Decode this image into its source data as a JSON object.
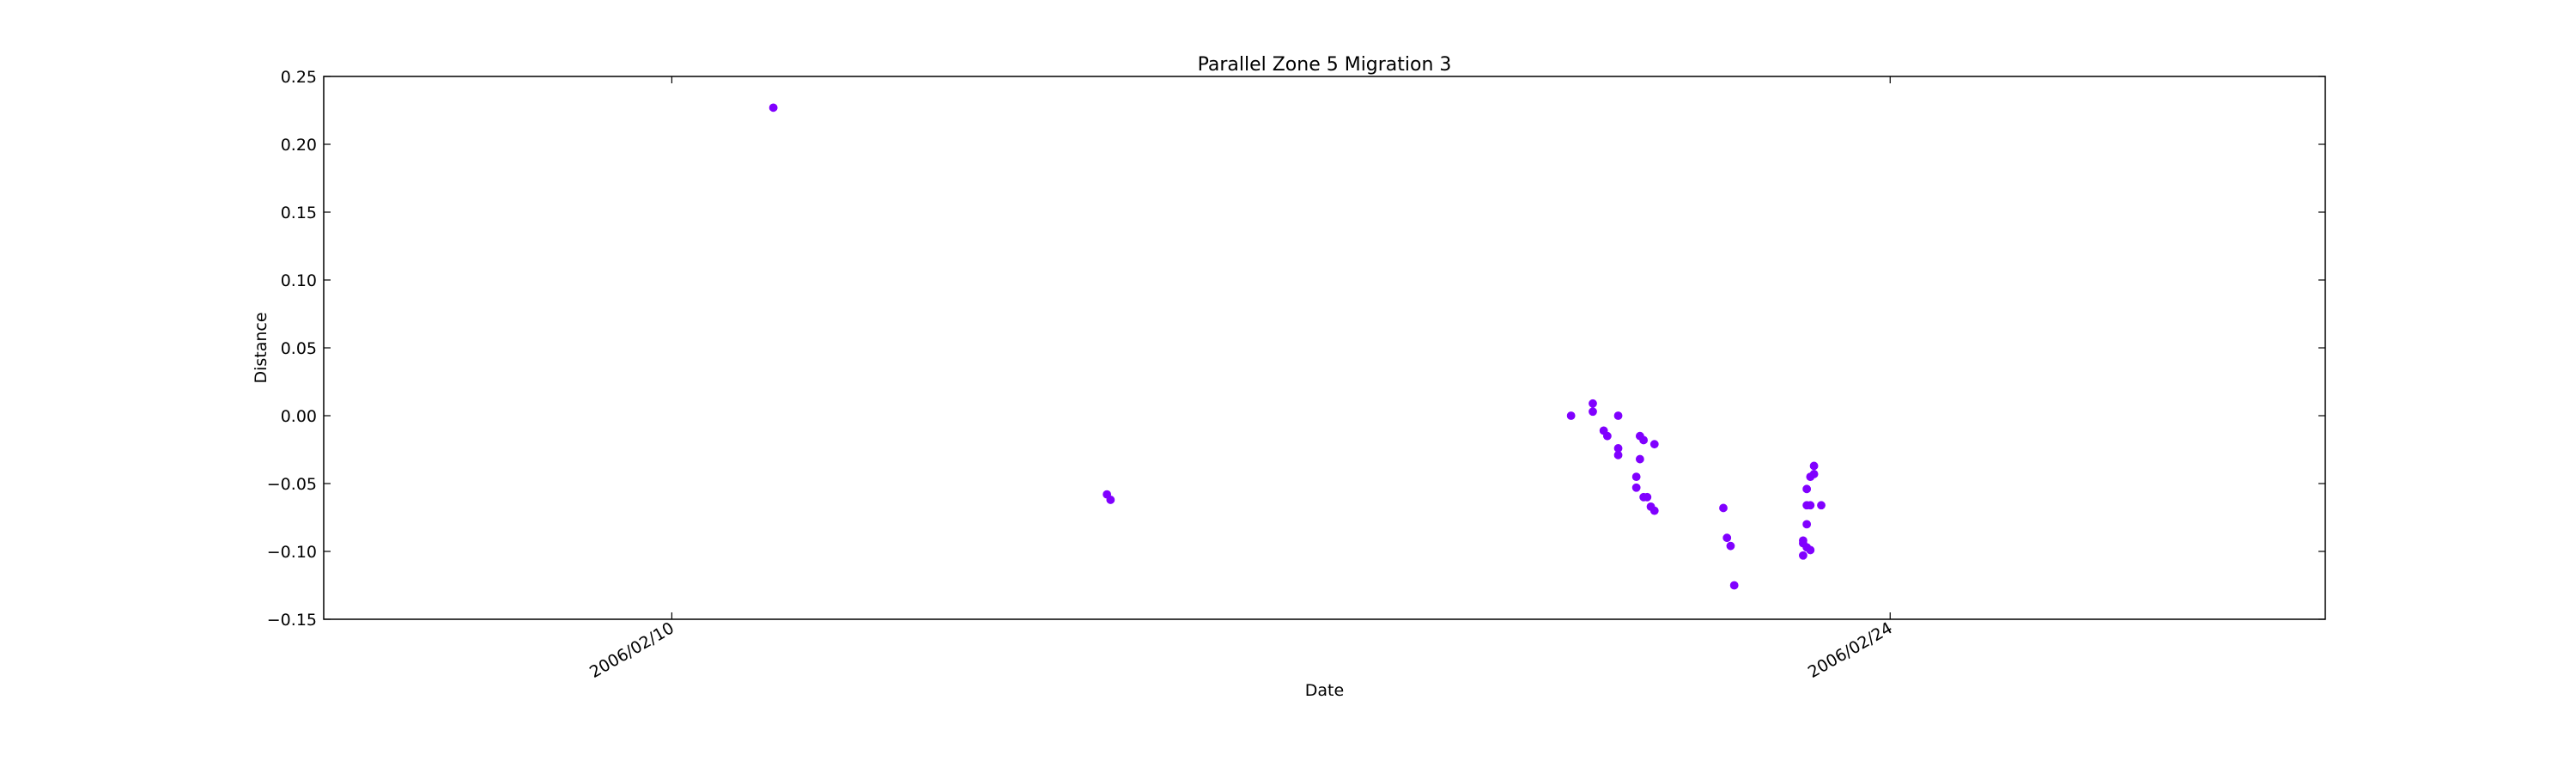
{
  "chart_data": {
    "type": "scatter",
    "title": "Parallel Zone 5 Migration 3",
    "xlabel": "Date",
    "ylabel": "Distance",
    "xlim": [
      "2006-02-06T00:00",
      "2006-03-01T00:00"
    ],
    "ylim": [
      -0.15,
      0.25
    ],
    "x_ticks": [
      "2006-02-10",
      "2006-02-24"
    ],
    "x_tick_labels": [
      "2006/02/10",
      "2006/02/24"
    ],
    "y_ticks": [
      -0.15,
      -0.1,
      -0.05,
      0.0,
      0.05,
      0.1,
      0.15,
      0.2,
      0.25
    ],
    "y_tick_labels": [
      "−0.15",
      "−0.10",
      "−0.05",
      "0.00",
      "0.05",
      "0.10",
      "0.15",
      "0.20",
      "0.25"
    ],
    "grid": false,
    "legend": "none",
    "marker_color": "#8000ff",
    "series": [
      {
        "points": [
          {
            "x": "2006-02-11T04:00",
            "y": 0.227
          },
          {
            "x": "2006-02-15T00:00",
            "y": -0.058
          },
          {
            "x": "2006-02-15T01:00",
            "y": -0.062
          },
          {
            "x": "2006-02-20T08:00",
            "y": 0.0
          },
          {
            "x": "2006-02-20T14:00",
            "y": 0.003
          },
          {
            "x": "2006-02-20T14:00",
            "y": 0.009
          },
          {
            "x": "2006-02-20T17:00",
            "y": -0.011
          },
          {
            "x": "2006-02-20T18:00",
            "y": -0.015
          },
          {
            "x": "2006-02-20T21:00",
            "y": -0.024
          },
          {
            "x": "2006-02-20T21:00",
            "y": -0.029
          },
          {
            "x": "2006-02-20T21:00",
            "y": 0.0
          },
          {
            "x": "2006-02-21T02:00",
            "y": -0.045
          },
          {
            "x": "2006-02-21T02:00",
            "y": -0.053
          },
          {
            "x": "2006-02-21T03:00",
            "y": -0.015
          },
          {
            "x": "2006-02-21T03:00",
            "y": -0.032
          },
          {
            "x": "2006-02-21T04:00",
            "y": -0.018
          },
          {
            "x": "2006-02-21T04:00",
            "y": -0.06
          },
          {
            "x": "2006-02-21T05:00",
            "y": -0.06
          },
          {
            "x": "2006-02-21T06:00",
            "y": -0.067
          },
          {
            "x": "2006-02-21T07:00",
            "y": -0.021
          },
          {
            "x": "2006-02-21T07:00",
            "y": -0.07
          },
          {
            "x": "2006-02-22T02:00",
            "y": -0.068
          },
          {
            "x": "2006-02-22T03:00",
            "y": -0.09
          },
          {
            "x": "2006-02-22T04:00",
            "y": -0.096
          },
          {
            "x": "2006-02-22T05:00",
            "y": -0.125
          },
          {
            "x": "2006-02-23T00:00",
            "y": -0.103
          },
          {
            "x": "2006-02-23T00:00",
            "y": -0.094
          },
          {
            "x": "2006-02-23T00:00",
            "y": -0.092
          },
          {
            "x": "2006-02-23T01:00",
            "y": -0.08
          },
          {
            "x": "2006-02-23T01:00",
            "y": -0.066
          },
          {
            "x": "2006-02-23T01:00",
            "y": -0.054
          },
          {
            "x": "2006-02-23T01:00",
            "y": -0.097
          },
          {
            "x": "2006-02-23T02:00",
            "y": -0.099
          },
          {
            "x": "2006-02-23T02:00",
            "y": -0.066
          },
          {
            "x": "2006-02-23T02:00",
            "y": -0.045
          },
          {
            "x": "2006-02-23T03:00",
            "y": -0.043
          },
          {
            "x": "2006-02-23T03:00",
            "y": -0.037
          },
          {
            "x": "2006-02-23T05:00",
            "y": -0.066
          }
        ]
      }
    ]
  }
}
